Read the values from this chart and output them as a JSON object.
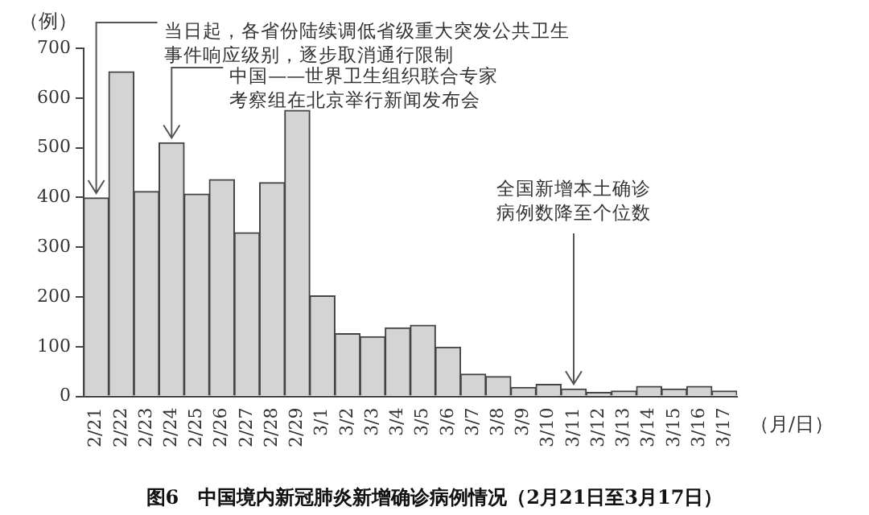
{
  "chart_data": {
    "type": "bar",
    "title": "图6　中国境内新冠肺炎新增确诊病例情况（2月21日至3月17日）",
    "ylabel": "（例）",
    "xlabel": "（月/日）",
    "categories": [
      "2/21",
      "2/22",
      "2/23",
      "2/24",
      "2/25",
      "2/26",
      "2/27",
      "2/28",
      "2/29",
      "3/1",
      "3/2",
      "3/3",
      "3/4",
      "3/5",
      "3/6",
      "3/7",
      "3/8",
      "3/9",
      "3/10",
      "3/11",
      "3/12",
      "3/13",
      "3/14",
      "3/15",
      "3/16",
      "3/17"
    ],
    "values": [
      399,
      653,
      412,
      510,
      407,
      436,
      329,
      430,
      575,
      202,
      126,
      120,
      138,
      143,
      99,
      45,
      40,
      18,
      24,
      15,
      8,
      11,
      20,
      15,
      20,
      11
    ],
    "color": "#d4d4d4",
    "ylim": [
      0,
      700
    ],
    "yticks": [
      0,
      100,
      200,
      300,
      400,
      500,
      600,
      700
    ],
    "grid": false,
    "legend": false,
    "annotations": [
      {
        "text": "当日起，各省份陆续调低省级重大突发公共卫生事件响应级别，逐步取消通行限制",
        "x": "2/21",
        "y": 399
      },
      {
        "text": "中国——世界卫生组织联合专家考察组在北京举行新闻发布会",
        "x": "2/24",
        "y": 510
      },
      {
        "text": "全国新增本土确诊病例数降至个位数",
        "x": "3/11",
        "y": 15
      }
    ]
  }
}
